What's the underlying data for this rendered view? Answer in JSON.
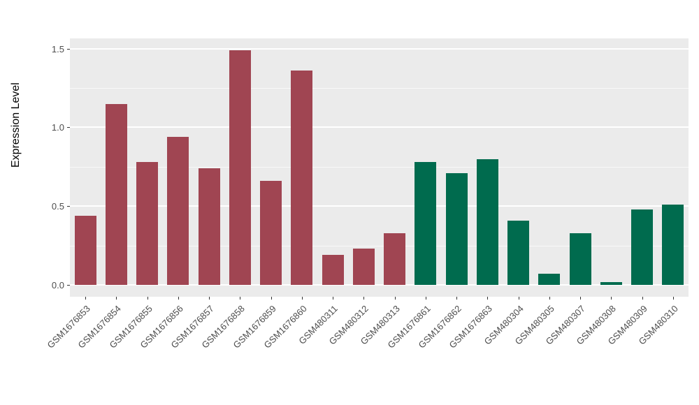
{
  "chart_data": {
    "type": "bar",
    "title": "",
    "xlabel": "",
    "ylabel": "Expression Level",
    "ylim": [
      0,
      1.5
    ],
    "yticks": [
      0.0,
      0.5,
      1.0,
      1.5
    ],
    "yticks_minor": [
      0.25,
      0.75,
      1.25
    ],
    "grid": true,
    "legend_position": "none",
    "panel_background": "#EBEBEB",
    "grid_color": "#FFFFFF",
    "categories": [
      "GSM1676853",
      "GSM1676854",
      "GSM1676855",
      "GSM1676856",
      "GSM1676857",
      "GSM1676858",
      "GSM1676859",
      "GSM1676860",
      "GSM480311",
      "GSM480312",
      "GSM480313",
      "GSM1676861",
      "GSM1676862",
      "GSM1676863",
      "GSM480304",
      "GSM480305",
      "GSM480307",
      "GSM480308",
      "GSM480309",
      "GSM480310"
    ],
    "values": [
      0.44,
      1.15,
      0.78,
      0.94,
      0.74,
      1.49,
      0.66,
      1.36,
      0.19,
      0.23,
      0.33,
      0.78,
      0.71,
      0.8,
      0.41,
      0.07,
      0.33,
      0.02,
      0.48,
      0.51
    ],
    "bar_colors": [
      "#A04552",
      "#A04552",
      "#A04552",
      "#A04552",
      "#A04552",
      "#A04552",
      "#A04552",
      "#A04552",
      "#A04552",
      "#A04552",
      "#A04552",
      "#006B4E",
      "#006B4E",
      "#006B4E",
      "#006B4E",
      "#006B4E",
      "#006B4E",
      "#006B4E",
      "#006B4E",
      "#006B4E"
    ],
    "group_colors": {
      "maroon_group": "#A04552",
      "green_group": "#006B4E"
    }
  }
}
